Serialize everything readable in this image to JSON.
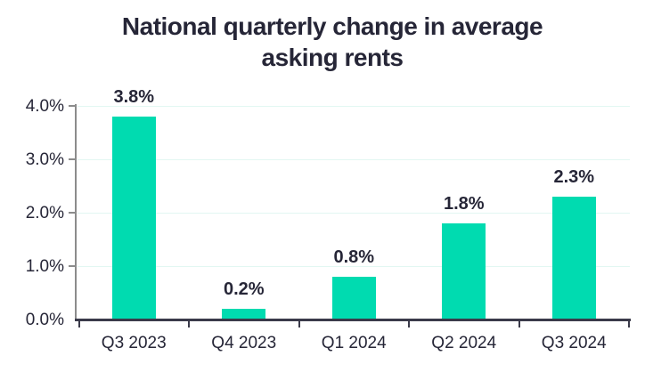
{
  "header": {
    "title_line1": "National quarterly change in average",
    "title_line2": "asking rents"
  },
  "chart_data": {
    "type": "bar",
    "title": "National quarterly change in average asking rents",
    "categories": [
      "Q3 2023",
      "Q4 2023",
      "Q1 2024",
      "Q2 2024",
      "Q3 2024"
    ],
    "values": [
      3.8,
      0.2,
      0.8,
      1.8,
      2.3
    ],
    "value_labels": [
      "3.8%",
      "0.2%",
      "0.8%",
      "1.8%",
      "2.3%"
    ],
    "xlabel": "",
    "ylabel": "",
    "ylim": [
      0,
      4.0
    ],
    "yticks": [
      {
        "value": 0.0,
        "label": "0.0%"
      },
      {
        "value": 1.0,
        "label": "1.0%"
      },
      {
        "value": 2.0,
        "label": "2.0%"
      },
      {
        "value": 3.0,
        "label": "3.0%"
      },
      {
        "value": 4.0,
        "label": "4.0%"
      }
    ],
    "grid": "horizontal",
    "legend": "none",
    "colors": {
      "bar_fill": "#00dbb0",
      "title_text": "#262637",
      "axis_text": "#262637",
      "gridline": "#e2f7f2",
      "y_axis_line": "#8c8c8c",
      "x_axis_line": "#3a3a4a"
    }
  }
}
